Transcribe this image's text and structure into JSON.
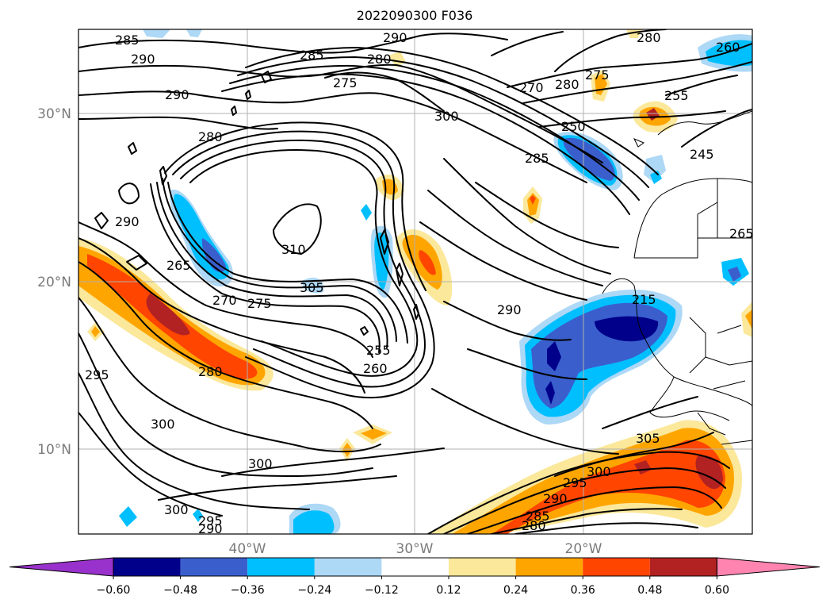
{
  "title": "2022090300 F036",
  "lat_ticks": [
    "30°N",
    "20°N",
    "10°N"
  ],
  "lon_ticks": [
    "40°W",
    "30°W",
    "20°W"
  ],
  "colorbar": {
    "ticks": [
      "−0.60",
      "−0.48",
      "−0.36",
      "−0.24",
      "−0.12",
      "0.12",
      "0.24",
      "0.36",
      "0.48",
      "0.60"
    ],
    "colors": [
      "#9932cc",
      "#00008b",
      "#3a5fcd",
      "#00bfff",
      "#add8f6",
      "#ffffff",
      "#fbe89a",
      "#ffa500",
      "#ff4500",
      "#b22222",
      "#ff85b0"
    ]
  },
  "contour_labels": [
    "285",
    "290",
    "290",
    "285",
    "280",
    "280",
    "275",
    "290",
    "280",
    "300",
    "270",
    "280",
    "275",
    "255",
    "250",
    "285",
    "245",
    "290",
    "310",
    "265",
    "265",
    "305",
    "270",
    "275",
    "290",
    "215",
    "295",
    "280",
    "255",
    "260",
    "300",
    "300",
    "305",
    "300",
    "295",
    "290",
    "285",
    "280",
    "300",
    "295",
    "290",
    "260"
  ],
  "colors": {
    "isoline": "#000000",
    "gridline": "#b0b0b0",
    "tick": "#7a7a7a"
  }
}
